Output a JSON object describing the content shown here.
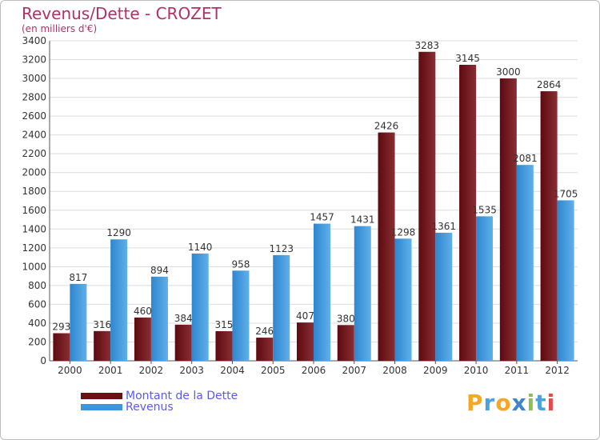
{
  "header": {
    "title": "Revenus/Dette - CROZET",
    "subtitle": "(en milliers d'€)"
  },
  "chart_data": {
    "type": "bar",
    "categories": [
      "2000",
      "2001",
      "2002",
      "2003",
      "2004",
      "2005",
      "2006",
      "2007",
      "2008",
      "2009",
      "2010",
      "2011",
      "2012"
    ],
    "series": [
      {
        "name": "Montant de la Dette",
        "color": "#7a1f24",
        "values": [
          293,
          316,
          460,
          384,
          315,
          246,
          407,
          380,
          2426,
          3283,
          3145,
          3000,
          2864
        ]
      },
      {
        "name": "Revenus",
        "color": "#4fa3e0",
        "values": [
          817,
          1290,
          894,
          1140,
          958,
          1123,
          1457,
          1431,
          1298,
          1361,
          1535,
          2081,
          1705
        ]
      }
    ],
    "ylim": [
      0,
      3400
    ],
    "yticks": [
      0,
      200,
      400,
      600,
      800,
      1000,
      1200,
      1400,
      1600,
      1800,
      2000,
      2200,
      2400,
      2600,
      2800,
      3000,
      3200,
      3400
    ],
    "grid": true,
    "legend_position": "bottom-left"
  },
  "legend": {
    "items": [
      {
        "label": "Montant de la Dette",
        "color": "#6b0f14"
      },
      {
        "label": "Revenus",
        "color": "#3f95dc"
      }
    ]
  },
  "logo": {
    "text": "Proxiti",
    "letters": [
      {
        "ch": "P",
        "color": "#f5a623"
      },
      {
        "ch": "r",
        "color": "#4aa3df"
      },
      {
        "ch": "o",
        "color": "#f5a623"
      },
      {
        "ch": "x",
        "color": "#3f86c9"
      },
      {
        "ch": "i",
        "color": "#8bc34a"
      },
      {
        "ch": "t",
        "color": "#4aa3df"
      },
      {
        "ch": "i",
        "color": "#e64a4a"
      }
    ]
  }
}
